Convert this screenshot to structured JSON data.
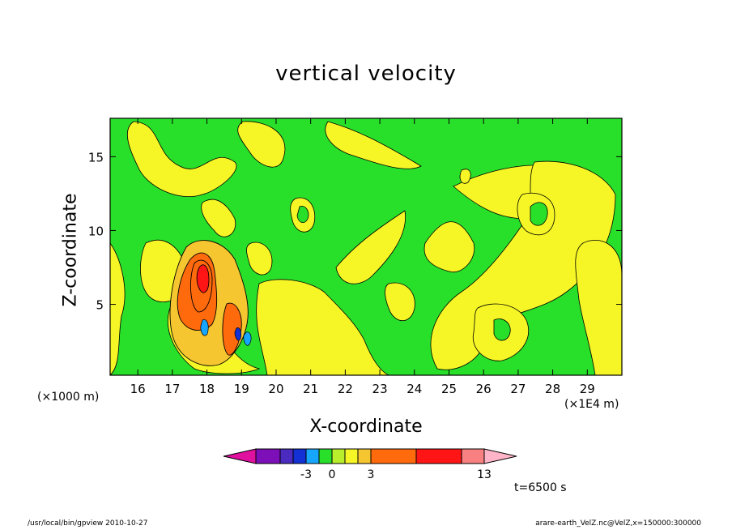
{
  "chart_data": {
    "type": "heatmap",
    "title": "vertical velocity",
    "xlabel": "X-coordinate",
    "ylabel": "Z-coordinate",
    "x_unit_left": "(×1000 m)",
    "x_unit_right": "(×1E4 m)",
    "x_ticks": [
      16,
      17,
      18,
      19,
      20,
      21,
      22,
      23,
      24,
      25,
      26,
      27,
      28,
      29
    ],
    "y_ticks": [
      5,
      10,
      15
    ],
    "xlim": [
      15.2,
      30.0
    ],
    "ylim": [
      0.2,
      17.6
    ],
    "colorbar": {
      "colors": [
        "#e0119e",
        "#7c0fb7",
        "#4b2bbf",
        "#1330d4",
        "#17a6ff",
        "#28e02a",
        "#b8ee2c",
        "#f6f626",
        "#f5c630",
        "#ff6a0d",
        "#ff1515",
        "#f88080",
        "#ffb4c8"
      ],
      "tick_labels": [
        "-3",
        "0",
        "3",
        "13"
      ]
    },
    "regions": [
      {
        "level": "positive",
        "x": 17.4,
        "z": 7.0,
        "note": "updraft core"
      },
      {
        "level": "positive",
        "x": 18.6,
        "z": 3.0,
        "note": "secondary core"
      }
    ]
  },
  "annotations": {
    "time": "t=6500 s",
    "footer_left": "/usr/local/bin/gpview   2010-10-27",
    "footer_right": "arare-earth_VelZ.nc@VelZ,x=150000:300000"
  }
}
